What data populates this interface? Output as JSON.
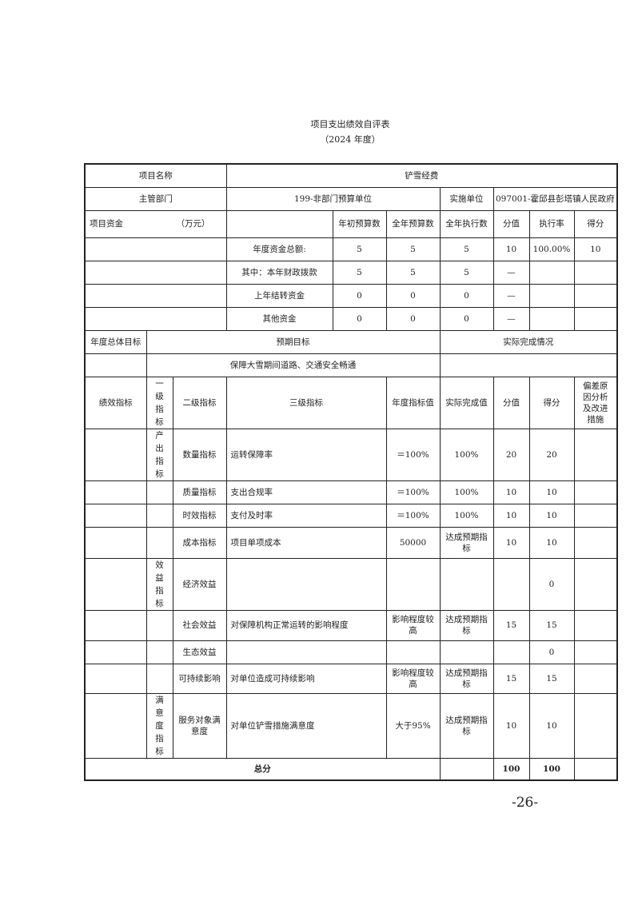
{
  "title": "项目支出绩效自评表",
  "subtitle": "（2024 年度）",
  "project": {
    "name_label": "项目名称",
    "name": "铲雪经费",
    "dept_label": "主管部门",
    "dept": "199-非部门预算单位",
    "impl_label": "实施单位",
    "impl": "097001-霍邱县彭塔镇人民政府"
  },
  "funds": {
    "label": "项目资金",
    "unit": "（万元）",
    "headers": [
      "年初预算数",
      "全年预算数",
      "全年执行数",
      "分值",
      "执行率",
      "得分"
    ],
    "rows": [
      {
        "label": "年度资金总额:",
        "v": [
          "5",
          "5",
          "5",
          "10",
          "100.00%",
          "10"
        ]
      },
      {
        "label": "其中：本年财政拨款",
        "v": [
          "5",
          "5",
          "5",
          "—",
          "",
          ""
        ]
      },
      {
        "label": "上年结转资金",
        "v": [
          "0",
          "0",
          "0",
          "—",
          "",
          ""
        ]
      },
      {
        "label": "其他资金",
        "v": [
          "0",
          "0",
          "0",
          "—",
          "",
          ""
        ]
      }
    ]
  },
  "goal": {
    "label": "年度总体目标",
    "expected_label": "预期目标",
    "actual_label": "实际完成情况",
    "expected": "保障大雪期间道路、交通安全畅通",
    "actual": ""
  },
  "indicators": {
    "headers": [
      "绩效指标",
      "一级指标",
      "二级指标",
      "三级指标",
      "年度指标值",
      "实际完成值",
      "分值",
      "得分",
      "偏差原因分析及改进措施"
    ],
    "rows": [
      {
        "l1": "产出指标",
        "l2": "数量指标",
        "l3": "运转保障率",
        "target": "＝100%",
        "actual": "100%",
        "weight": "20",
        "score": "20"
      },
      {
        "l1": "",
        "l2": "质量指标",
        "l3": "支出合规率",
        "target": "＝100%",
        "actual": "100%",
        "weight": "10",
        "score": "10"
      },
      {
        "l1": "",
        "l2": "时效指标",
        "l3": "支付及时率",
        "target": "＝100%",
        "actual": "100%",
        "weight": "10",
        "score": "10"
      },
      {
        "l1": "",
        "l2": "成本指标",
        "l3": "项目单项成本",
        "target": "50000",
        "actual": "达成预期指标",
        "weight": "10",
        "score": "10"
      },
      {
        "l1": "效益指标",
        "l2": "经济效益",
        "l3": "",
        "target": "",
        "actual": "",
        "weight": "",
        "score": "0"
      },
      {
        "l1": "",
        "l2": "社会效益",
        "l3": "对保障机构正常运转的影响程度",
        "target": "影响程度较高",
        "actual": "达成预期指标",
        "weight": "15",
        "score": "15"
      },
      {
        "l1": "",
        "l2": "生态效益",
        "l3": "",
        "target": "",
        "actual": "",
        "weight": "",
        "score": "0"
      },
      {
        "l1": "",
        "l2": "可持续影响",
        "l3": "对单位造成可持续影响",
        "target": "影响程度较高",
        "actual": "达成预期指标",
        "weight": "15",
        "score": "15"
      },
      {
        "l1": "满意度指标",
        "l2": "服务对象满意度",
        "l3": "对单位铲雪措施满意度",
        "target": "大于95%",
        "actual": "达成预期指标",
        "weight": "10",
        "score": "10"
      }
    ]
  },
  "total": {
    "label": "总分",
    "weight": "100",
    "score": "100"
  },
  "page_number": "-26-"
}
